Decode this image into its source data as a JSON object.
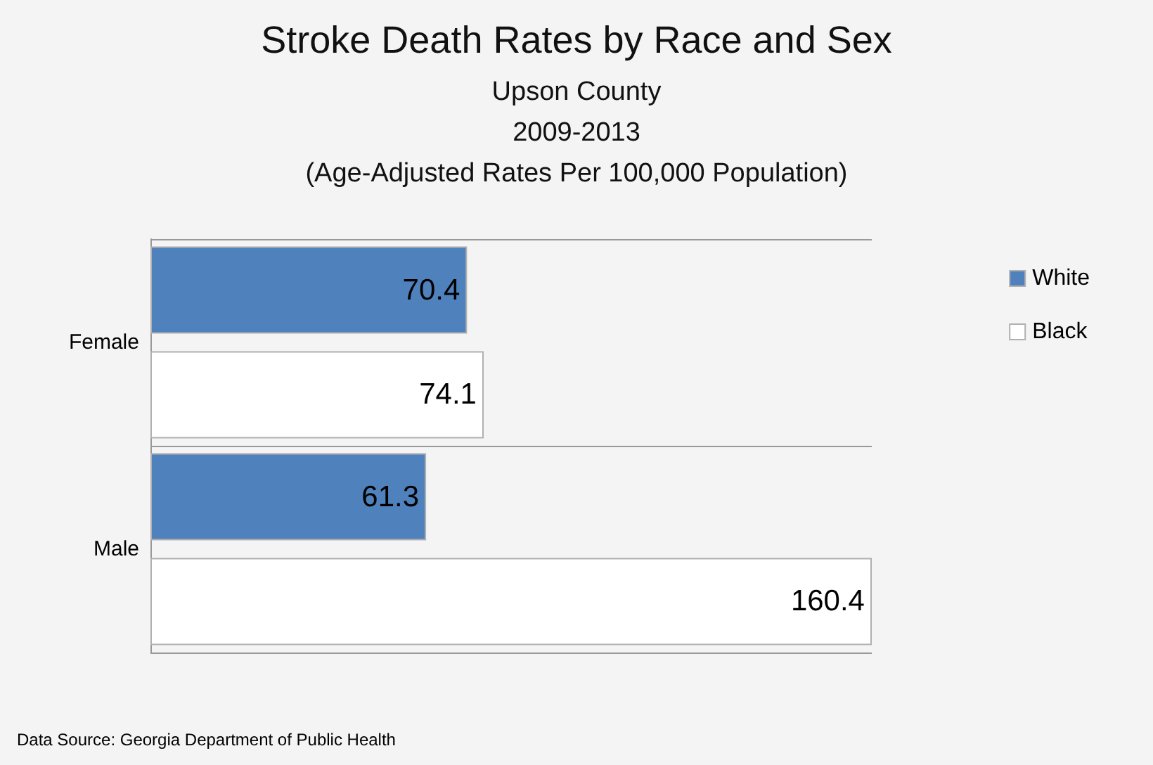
{
  "chart_data": {
    "type": "bar",
    "orientation": "horizontal",
    "title": "Stroke Death Rates by Race and Sex",
    "subtitle": "Upson County\n2009-2013\n(Age-Adjusted Rates Per 100,000 Population)",
    "categories": [
      "Female",
      "Male"
    ],
    "series": [
      {
        "name": "White",
        "color": "#4f81bd",
        "values": [
          70.4,
          61.3
        ]
      },
      {
        "name": "Black",
        "color": "#ffffff",
        "values": [
          74.1,
          160.4
        ]
      }
    ],
    "data_labels": true,
    "legend": "right",
    "grid": false,
    "tick_labels": "y",
    "annotations": [
      "Data Source: Georgia Department of Public Health"
    ]
  }
}
